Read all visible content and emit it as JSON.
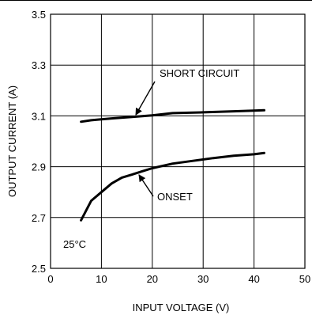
{
  "chart_data": {
    "type": "line",
    "xlabel": "INPUT VOLTAGE (V)",
    "ylabel": "OUTPUT CURRENT (A)",
    "xlim": [
      0,
      50
    ],
    "ylim": [
      2.5,
      3.5
    ],
    "x_ticks": [
      0,
      10,
      20,
      30,
      40,
      50
    ],
    "y_ticks": [
      2.5,
      2.7,
      2.9,
      3.1,
      3.3,
      3.5
    ],
    "x_tick_labels": [
      "0",
      "10",
      "20",
      "30",
      "40",
      "50"
    ],
    "y_tick_labels": [
      "2.5",
      "2.7",
      "2.9",
      "3.1",
      "3.3",
      "3.5"
    ],
    "grid": true,
    "series": [
      {
        "name": "SHORT CIRCUIT",
        "x": [
          6,
          8,
          12,
          16,
          20,
          24,
          30,
          36,
          40,
          42
        ],
        "y": [
          3.077,
          3.083,
          3.09,
          3.096,
          3.102,
          3.111,
          3.114,
          3.118,
          3.121,
          3.122
        ]
      },
      {
        "name": "ONSET",
        "x": [
          6,
          8,
          10,
          12,
          14,
          16,
          18,
          20,
          24,
          28,
          32,
          36,
          40,
          42
        ],
        "y": [
          2.689,
          2.766,
          2.8,
          2.834,
          2.857,
          2.869,
          2.882,
          2.894,
          2.912,
          2.923,
          2.934,
          2.943,
          2.949,
          2.954
        ]
      }
    ],
    "annotations": [
      {
        "text": "SHORT CIRCUIT",
        "series": 0
      },
      {
        "text": "ONSET",
        "series": 1
      },
      {
        "text": "25°C"
      }
    ]
  }
}
